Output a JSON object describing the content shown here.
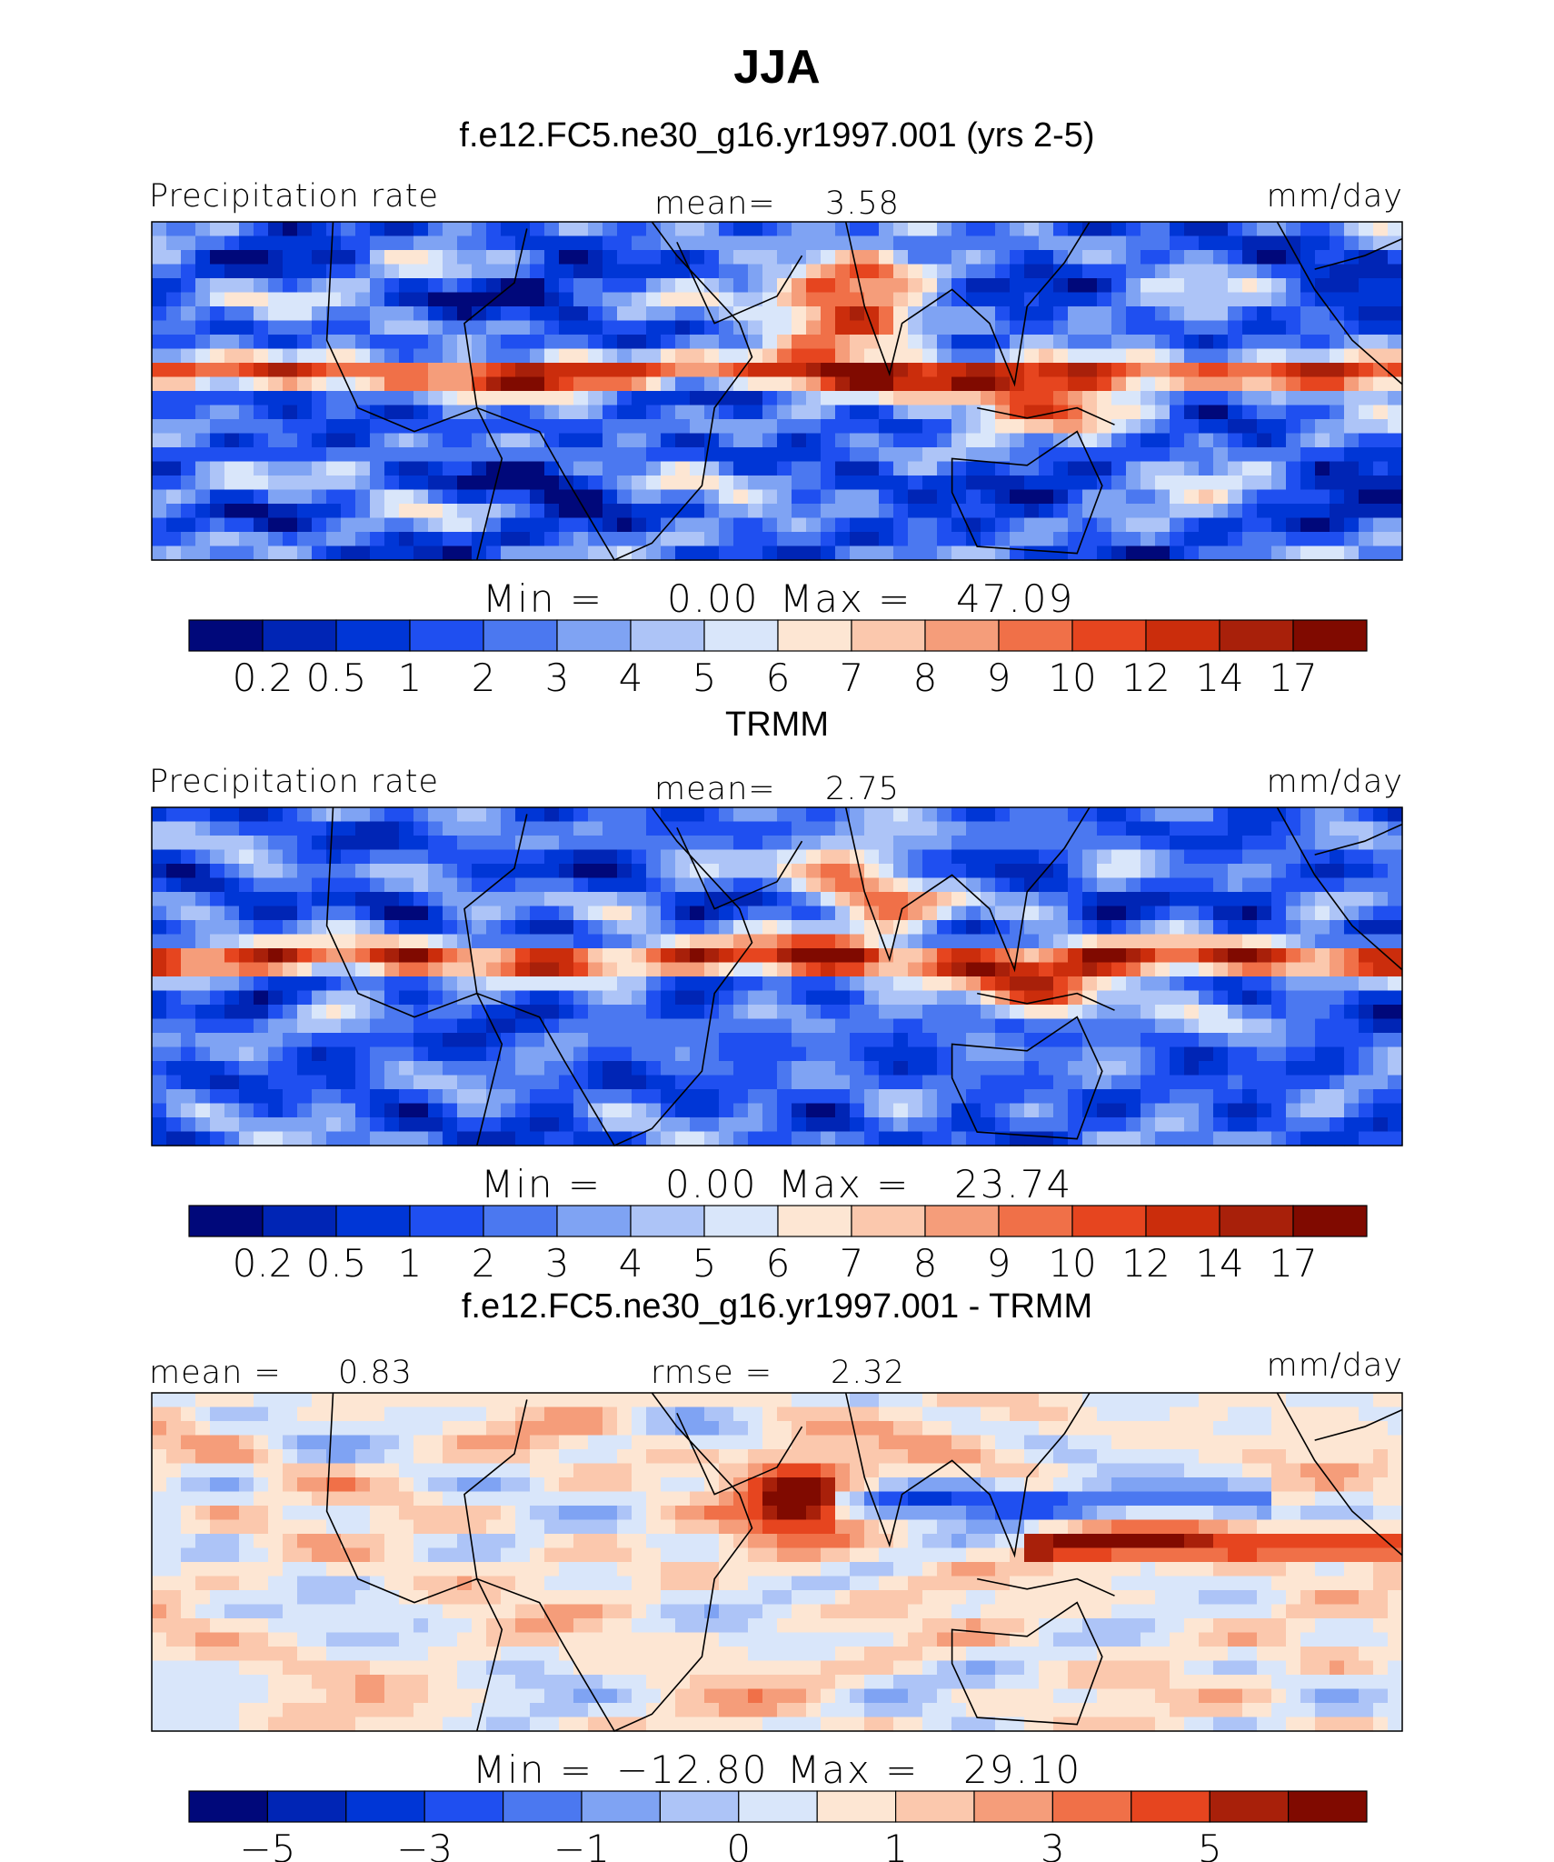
{
  "header": {
    "title": "JJA",
    "subtitle": "f.e12.FC5.ne30_g16.yr1997.001 (yrs 2-5)"
  },
  "chart_data": [
    {
      "type": "heatmap",
      "name": "model",
      "title": "",
      "left_label": "Precipitation rate",
      "center_label": "mean=",
      "center_value": "3.58",
      "units": "mm/day",
      "min_label": "Min  =",
      "min_value": "0.00",
      "max_label": "Max  =",
      "max_value": "47.09",
      "colorbar_levels": [
        "0.2",
        "0.5",
        "1",
        "2",
        "3",
        "4",
        "5",
        "6",
        "7",
        "8",
        "9",
        "10",
        "12",
        "14",
        "17"
      ],
      "colors": [
        "#00087a",
        "#0025b5",
        "#0036d6",
        "#1f4ff0",
        "#4b78f0",
        "#7fa3f3",
        "#adc4f7",
        "#d9e6fa",
        "#fde6d3",
        "#fbc8ad",
        "#f59d7a",
        "#f07048",
        "#e6451f",
        "#cb2d0c",
        "#a8200a",
        "#800a00"
      ]
    },
    {
      "type": "heatmap",
      "name": "trmm",
      "title": "TRMM",
      "left_label": "Precipitation rate",
      "center_label": "mean=",
      "center_value": "2.75",
      "units": "mm/day",
      "min_label": "Min  =",
      "min_value": "0.00",
      "max_label": "Max  =",
      "max_value": "23.74",
      "colorbar_levels": [
        "0.2",
        "0.5",
        "1",
        "2",
        "3",
        "4",
        "5",
        "6",
        "7",
        "8",
        "9",
        "10",
        "12",
        "14",
        "17"
      ],
      "colors": [
        "#00087a",
        "#0025b5",
        "#0036d6",
        "#1f4ff0",
        "#4b78f0",
        "#7fa3f3",
        "#adc4f7",
        "#d9e6fa",
        "#fde6d3",
        "#fbc8ad",
        "#f59d7a",
        "#f07048",
        "#e6451f",
        "#cb2d0c",
        "#a8200a",
        "#800a00"
      ]
    },
    {
      "type": "heatmap",
      "name": "difference",
      "title": "f.e12.FC5.ne30_g16.yr1997.001 - TRMM",
      "left_label": "mean =",
      "left_value": "0.83",
      "center_label": "rmse =",
      "center_value": "2.32",
      "units": "mm/day",
      "min_label": "Min  =",
      "min_value": "−12.80",
      "max_label": "Max  =",
      "max_value": "29.10",
      "colorbar_levels": [
        "−5",
        "",
        "−3",
        "",
        "−1",
        "",
        "0",
        "",
        "1",
        "",
        "3",
        "",
        "5"
      ],
      "colors": [
        "#00087a",
        "#0025b5",
        "#0036d6",
        "#1f4ff0",
        "#4b78f0",
        "#7fa3f3",
        "#adc4f7",
        "#d9e6fa",
        "#fde6d3",
        "#fbc8ad",
        "#f59d7a",
        "#f07048",
        "#e6451f",
        "#a8200a",
        "#800a00"
      ]
    }
  ]
}
